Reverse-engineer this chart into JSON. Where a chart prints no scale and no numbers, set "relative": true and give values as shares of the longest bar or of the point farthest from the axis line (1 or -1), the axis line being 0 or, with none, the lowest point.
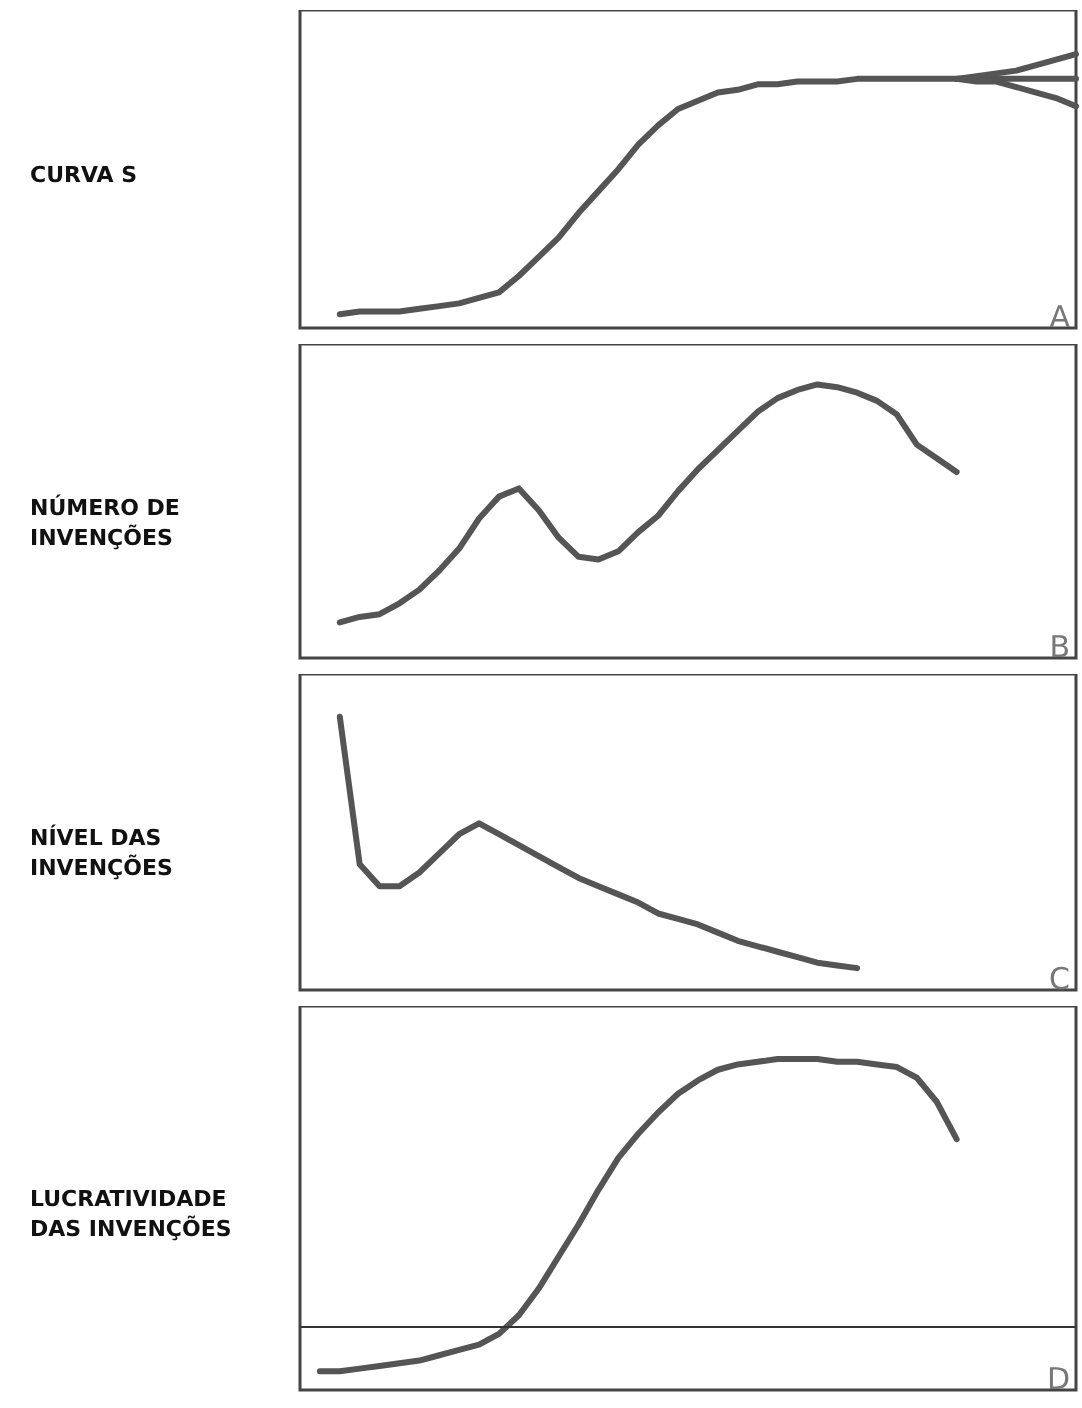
{
  "chart_data": [
    {
      "type": "line",
      "ylabel": "CURVA S",
      "annotations": [
        "A"
      ],
      "relative": true,
      "marker": "none",
      "categories": [
        null,
        null,
        null,
        null,
        null,
        null,
        null,
        null,
        null,
        null,
        null,
        null,
        null,
        null,
        null,
        null,
        null,
        null,
        null,
        null,
        null,
        null,
        null,
        null,
        null,
        null,
        null,
        null,
        null,
        null,
        null,
        null,
        null,
        null,
        null,
        null,
        null,
        null,
        null,
        null
      ],
      "series": [
        {
          "color": "#555555",
          "values": [
            null,
            null,
            0.05,
            0.06,
            0.06,
            0.06,
            0.07,
            0.08,
            0.09,
            0.11,
            0.13,
            0.19,
            0.26,
            0.33,
            0.42,
            0.5,
            0.58,
            0.67,
            0.74,
            0.8,
            0.83,
            0.86,
            0.87,
            0.89,
            0.89,
            0.9,
            0.9,
            0.9,
            0.91,
            0.91,
            0.91,
            0.91,
            0.91,
            0.91,
            0.91,
            0.91,
            0.91,
            0.91,
            0.91,
            0.91
          ]
        },
        {
          "color": "#555555",
          "values": [
            null,
            null,
            null,
            null,
            null,
            null,
            null,
            null,
            null,
            null,
            null,
            null,
            null,
            null,
            null,
            null,
            null,
            null,
            null,
            null,
            null,
            null,
            null,
            null,
            null,
            null,
            null,
            null,
            null,
            null,
            null,
            null,
            null,
            0.91,
            0.92,
            0.93,
            0.94,
            0.96,
            0.98,
            1.0
          ]
        },
        {
          "color": "#555555",
          "values": [
            null,
            null,
            null,
            null,
            null,
            null,
            null,
            null,
            null,
            null,
            null,
            null,
            null,
            null,
            null,
            null,
            null,
            null,
            null,
            null,
            null,
            null,
            null,
            null,
            null,
            null,
            null,
            null,
            null,
            null,
            null,
            null,
            null,
            0.91,
            0.9,
            0.9,
            0.88,
            0.86,
            0.84,
            0.81
          ]
        }
      ]
    },
    {
      "type": "line",
      "ylabel": "NÚMERO DE INVENÇÕES",
      "annotations": [
        "B"
      ],
      "relative": true,
      "marker": "none",
      "categories": [
        null,
        null,
        null,
        null,
        null,
        null,
        null,
        null,
        null,
        null,
        null,
        null,
        null,
        null,
        null,
        null,
        null,
        null,
        null,
        null,
        null,
        null,
        null,
        null,
        null,
        null,
        null,
        null,
        null,
        null,
        null,
        null,
        null,
        null,
        null,
        null,
        null,
        null,
        null,
        null
      ],
      "series": [
        {
          "color": "#555555",
          "values": [
            null,
            null,
            0.13,
            0.15,
            0.16,
            0.2,
            0.25,
            0.32,
            0.4,
            0.51,
            0.59,
            0.62,
            0.54,
            0.44,
            0.37,
            0.36,
            0.39,
            0.46,
            0.52,
            0.61,
            0.69,
            0.76,
            0.83,
            0.9,
            0.95,
            0.98,
            1.0,
            0.99,
            0.97,
            0.94,
            0.89,
            0.78,
            0.73,
            0.68,
            null,
            null,
            null,
            null,
            null,
            null
          ]
        }
      ]
    },
    {
      "type": "line",
      "ylabel": "NÍVEL DAS INVENÇÕES",
      "annotations": [
        "C"
      ],
      "relative": true,
      "marker": "none",
      "categories": [
        null,
        null,
        null,
        null,
        null,
        null,
        null,
        null,
        null,
        null,
        null,
        null,
        null,
        null,
        null,
        null,
        null,
        null,
        null,
        null,
        null,
        null,
        null,
        null,
        null,
        null,
        null,
        null,
        null,
        null,
        null,
        null,
        null,
        null,
        null,
        null,
        null,
        null,
        null,
        null
      ],
      "series": [
        {
          "color": "#555555",
          "values": [
            null,
            null,
            1.0,
            0.46,
            0.38,
            0.38,
            0.43,
            0.5,
            0.57,
            0.61,
            0.57,
            0.53,
            0.49,
            0.45,
            0.41,
            0.38,
            0.35,
            0.32,
            0.28,
            0.26,
            0.24,
            0.21,
            0.18,
            0.16,
            0.14,
            0.12,
            0.1,
            0.09,
            0.08,
            null,
            null,
            null,
            null,
            null,
            null,
            null,
            null,
            null,
            null,
            null
          ]
        }
      ]
    },
    {
      "type": "line",
      "ylabel": "LUCRATIVIDADE DAS INVENÇÕES",
      "annotations": [
        "D"
      ],
      "relative": true,
      "marker": "none",
      "categories": [
        null,
        null,
        null,
        null,
        null,
        null,
        null,
        null,
        null,
        null,
        null,
        null,
        null,
        null,
        null,
        null,
        null,
        null,
        null,
        null,
        null,
        null,
        null,
        null,
        null,
        null,
        null,
        null,
        null,
        null,
        null,
        null,
        null,
        null,
        null,
        null,
        null,
        null,
        null,
        null
      ],
      "ref_lines": [
        {
          "axis": "y",
          "value": 0
        }
      ],
      "series": [
        {
          "color": "#555555",
          "values": [
            null,
            -0.17,
            -0.17,
            -0.16,
            -0.15,
            -0.14,
            -0.13,
            -0.11,
            -0.09,
            -0.07,
            -0.03,
            0.04,
            0.14,
            0.26,
            0.38,
            0.51,
            0.63,
            0.72,
            0.8,
            0.87,
            0.92,
            0.96,
            0.98,
            0.99,
            1.0,
            1.0,
            1.0,
            0.99,
            0.99,
            0.98,
            0.97,
            0.93,
            0.84,
            0.7,
            null,
            null,
            null,
            null,
            null,
            null
          ]
        }
      ]
    }
  ]
}
